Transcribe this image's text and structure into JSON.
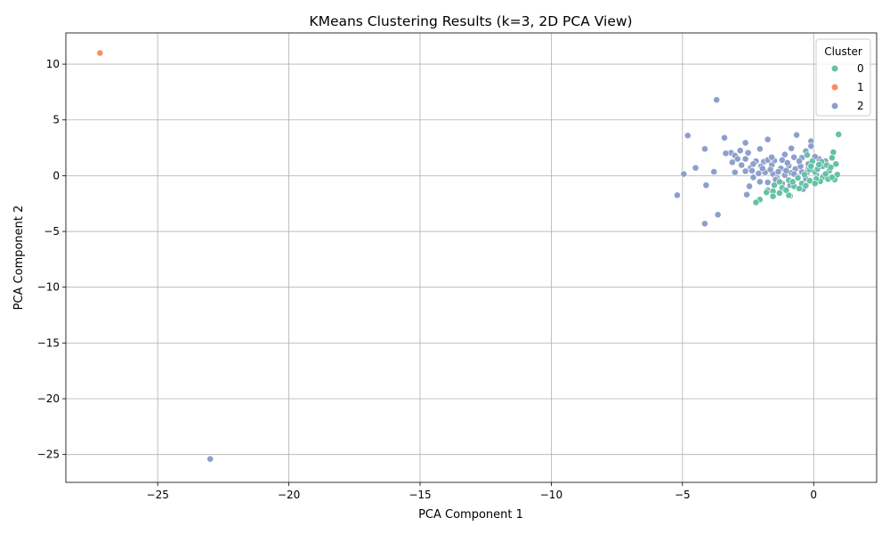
{
  "chart_data": {
    "type": "scatter",
    "title": "KMeans Clustering Results (k=3, 2D PCA View)",
    "xlabel": "PCA Component 1",
    "ylabel": "PCA Component 2",
    "xlim": [
      -28.5,
      2.4
    ],
    "ylim": [
      -27.5,
      12.8
    ],
    "xticks": [
      -25,
      -20,
      -15,
      -10,
      -5,
      0
    ],
    "yticks": [
      10,
      5,
      0,
      -5,
      -10,
      -15,
      -20,
      -25
    ],
    "xtick_labels": [
      "−25",
      "−20",
      "−15",
      "−10",
      "−5",
      "0"
    ],
    "ytick_labels": [
      "10",
      "5",
      "0",
      "−5",
      "−10",
      "−15",
      "−20",
      "−25"
    ],
    "grid": true,
    "legend": {
      "title": "Cluster",
      "placement": "top-right",
      "entries": [
        "0",
        "1",
        "2"
      ]
    },
    "series": [
      {
        "name": "0",
        "color": "#66c2a5",
        "points": [
          [
            0.95,
            3.7
          ],
          [
            0.75,
            2.1
          ],
          [
            0.7,
            1.6
          ],
          [
            0.85,
            1.05
          ],
          [
            0.5,
            0.95
          ],
          [
            0.3,
            1.25
          ],
          [
            -0.05,
            1.3
          ],
          [
            -0.25,
            1.85
          ],
          [
            0.05,
            0.35
          ],
          [
            0.5,
            0.2
          ],
          [
            0.8,
            -0.35
          ],
          [
            -0.15,
            -0.45
          ],
          [
            -0.45,
            -0.7
          ],
          [
            -0.75,
            -0.95
          ],
          [
            -0.95,
            -0.4
          ],
          [
            -1.3,
            -0.55
          ],
          [
            -1.5,
            -0.85
          ],
          [
            -1.2,
            -1.1
          ],
          [
            -1.55,
            -1.4
          ],
          [
            -1.3,
            -1.55
          ],
          [
            -0.95,
            -1.75
          ],
          [
            -1.55,
            -1.85
          ],
          [
            -2.05,
            -2.15
          ],
          [
            -2.2,
            -2.4
          ],
          [
            0.35,
            -0.1
          ],
          [
            0.6,
            0.45
          ],
          [
            0.15,
            0.6
          ],
          [
            -0.35,
            0.1
          ],
          [
            -0.6,
            -0.2
          ],
          [
            0.55,
            -0.3
          ],
          [
            0.9,
            0.1
          ],
          [
            0.7,
            -0.15
          ],
          [
            0.25,
            -0.5
          ],
          [
            -0.3,
            -0.9
          ],
          [
            -0.8,
            -0.55
          ],
          [
            -1.05,
            -1.3
          ],
          [
            0.45,
            0.15
          ],
          [
            0.1,
            -0.3
          ],
          [
            -0.15,
            0.55
          ],
          [
            0.65,
            0.75
          ],
          [
            0.05,
            -0.7
          ],
          [
            -0.55,
            -1.15
          ],
          [
            -1.8,
            -1.5
          ],
          [
            0.2,
            1.0
          ],
          [
            -0.1,
            0.85
          ]
        ]
      },
      {
        "name": "1",
        "color": "#fc8d62",
        "points": [
          [
            -27.2,
            11.0
          ]
        ]
      },
      {
        "name": "2",
        "color": "#8da0cb",
        "points": [
          [
            -23.0,
            -25.4
          ],
          [
            -3.7,
            6.8
          ],
          [
            -4.8,
            3.6
          ],
          [
            -3.4,
            3.4
          ],
          [
            -4.15,
            2.4
          ],
          [
            -2.6,
            2.95
          ],
          [
            -1.75,
            3.25
          ],
          [
            -0.65,
            3.65
          ],
          [
            -0.1,
            3.1
          ],
          [
            -0.1,
            2.65
          ],
          [
            -0.85,
            2.45
          ],
          [
            -2.05,
            2.4
          ],
          [
            -2.8,
            2.25
          ],
          [
            -3.15,
            2.05
          ],
          [
            -3.0,
            1.8
          ],
          [
            -3.1,
            1.2
          ],
          [
            -2.5,
            2.05
          ],
          [
            -2.9,
            1.5
          ],
          [
            -2.6,
            1.5
          ],
          [
            -2.2,
            1.3
          ],
          [
            -1.9,
            1.25
          ],
          [
            -1.75,
            1.4
          ],
          [
            -1.5,
            1.35
          ],
          [
            -1.2,
            1.4
          ],
          [
            -1.1,
            1.9
          ],
          [
            -0.75,
            1.65
          ],
          [
            -0.45,
            1.6
          ],
          [
            -0.3,
            2.2
          ],
          [
            0.2,
            1.5
          ],
          [
            0.45,
            1.3
          ],
          [
            -4.5,
            0.7
          ],
          [
            -3.8,
            0.35
          ],
          [
            -3.0,
            0.3
          ],
          [
            -2.6,
            0.4
          ],
          [
            -2.4,
            0.7
          ],
          [
            -2.0,
            0.85
          ],
          [
            -1.6,
            0.95
          ],
          [
            -1.25,
            0.65
          ],
          [
            -0.95,
            0.9
          ],
          [
            -0.7,
            0.6
          ],
          [
            -0.45,
            0.35
          ],
          [
            -0.2,
            0.65
          ],
          [
            -2.1,
            0.2
          ],
          [
            -1.85,
            0.3
          ],
          [
            -1.55,
            0.15
          ],
          [
            -1.4,
            -0.2
          ],
          [
            -1.1,
            0.05
          ],
          [
            -0.85,
            0.25
          ],
          [
            -0.6,
            -0.1
          ],
          [
            -0.3,
            -0.25
          ],
          [
            -2.3,
            -0.15
          ],
          [
            -2.05,
            -0.55
          ],
          [
            -1.75,
            -0.6
          ],
          [
            -1.45,
            -0.35
          ],
          [
            -1.2,
            -0.7
          ],
          [
            -0.9,
            -0.85
          ],
          [
            -4.95,
            0.15
          ],
          [
            -5.2,
            -1.75
          ],
          [
            -4.1,
            -0.85
          ],
          [
            -3.65,
            -3.5
          ],
          [
            -4.15,
            -4.3
          ],
          [
            -2.45,
            -0.95
          ],
          [
            -2.55,
            -1.7
          ],
          [
            -1.75,
            -1.3
          ],
          [
            -0.9,
            -1.8
          ],
          [
            -0.4,
            -1.2
          ],
          [
            0.0,
            -0.55
          ],
          [
            -2.35,
            0.45
          ],
          [
            -1.95,
            0.65
          ],
          [
            -1.65,
            0.55
          ],
          [
            -1.35,
            0.35
          ],
          [
            -1.05,
            0.45
          ],
          [
            -0.75,
            0.15
          ],
          [
            -0.5,
            0.85
          ],
          [
            -0.2,
            1.05
          ],
          [
            0.05,
            1.7
          ],
          [
            0.35,
            0.85
          ],
          [
            -3.35,
            2.0
          ],
          [
            -2.75,
            0.95
          ],
          [
            -2.3,
            1.05
          ],
          [
            -1.0,
            1.15
          ],
          [
            -0.55,
            1.3
          ],
          [
            -0.25,
            0.3
          ],
          [
            0.1,
            0.1
          ],
          [
            -1.6,
            1.65
          ]
        ]
      }
    ]
  }
}
